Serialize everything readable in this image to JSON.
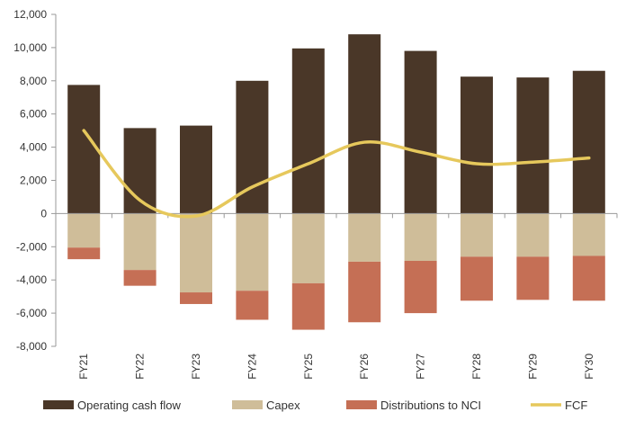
{
  "chart_data": {
    "type": "bar",
    "categories": [
      "FY21",
      "FY22",
      "FY23",
      "FY24",
      "FY25",
      "FY26",
      "FY27",
      "FY28",
      "FY29",
      "FY30"
    ],
    "series": [
      {
        "name": "Operating cash flow",
        "kind": "bar",
        "color": "#4a3728",
        "values": [
          7750,
          5150,
          5300,
          8000,
          9950,
          10800,
          9800,
          8250,
          8200,
          8600
        ]
      },
      {
        "name": "Capex",
        "kind": "bar",
        "color": "#cfbd99",
        "values": [
          -2050,
          -3400,
          -4750,
          -4650,
          -4200,
          -2900,
          -2850,
          -2600,
          -2600,
          -2550
        ]
      },
      {
        "name": "Distributions to NCI",
        "kind": "bar",
        "color": "#c56f55",
        "values": [
          -700,
          -950,
          -700,
          -1750,
          -2800,
          -3650,
          -3150,
          -2650,
          -2600,
          -2700
        ]
      },
      {
        "name": "FCF",
        "kind": "line",
        "color": "#e6c85c",
        "values": [
          5000,
          800,
          -150,
          1600,
          3000,
          4300,
          3700,
          3000,
          3100,
          3350
        ]
      }
    ],
    "y_ticks": [
      "12,000",
      "10,000",
      "8,000",
      "6,000",
      "4,000",
      "2,000",
      "0",
      "-2,000",
      "-4,000",
      "-6,000",
      "-8,000"
    ],
    "ylim": [
      -8000,
      12000
    ],
    "xlabel": "",
    "ylabel": "",
    "legend": "bottom",
    "grid": false
  }
}
